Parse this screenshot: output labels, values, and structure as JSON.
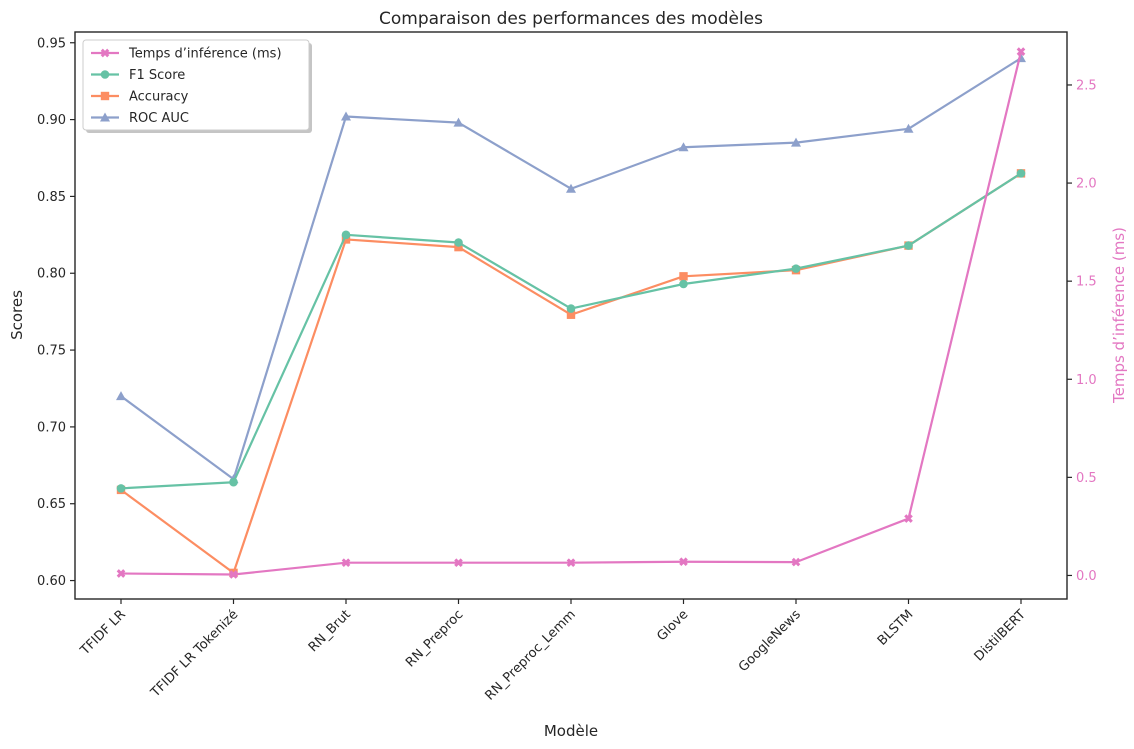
{
  "chart_data": {
    "type": "line",
    "title": "Comparaison des performances des modèles",
    "xlabel": "Modèle",
    "ylabel": "Scores",
    "y2label": "Temps d’inférence (ms)",
    "categories": [
      "TFIDF LR",
      "TFIDF LR Tokenizé",
      "RN_Brut",
      "RN_Preproc",
      "RN_Preproc_Lemm",
      "Glove",
      "GoogleNews",
      "BLSTM",
      "DistilBERT"
    ],
    "ylim": [
      0.588,
      0.957
    ],
    "y2lim": [
      -0.12,
      2.77
    ],
    "yticks": [
      "0.60",
      "0.65",
      "0.70",
      "0.75",
      "0.80",
      "0.85",
      "0.90",
      "0.95"
    ],
    "y2ticks": [
      "0.0",
      "0.5",
      "1.0",
      "1.5",
      "2.0",
      "2.5"
    ],
    "grid": false,
    "legend_position": "top-left",
    "series": [
      {
        "name": "Temps d’inférence (ms)",
        "axis": "right",
        "color": "#e377c2",
        "marker": "x",
        "values": [
          0.01,
          0.005,
          0.065,
          0.065,
          0.065,
          0.07,
          0.068,
          0.29,
          2.67
        ]
      },
      {
        "name": "F1 Score",
        "axis": "left",
        "color": "#66c2a5",
        "marker": "circle",
        "values": [
          0.66,
          0.664,
          0.825,
          0.82,
          0.777,
          0.793,
          0.803,
          0.818,
          0.865
        ]
      },
      {
        "name": "Accuracy",
        "axis": "left",
        "color": "#fc8d62",
        "marker": "square",
        "values": [
          0.659,
          0.605,
          0.822,
          0.817,
          0.773,
          0.798,
          0.802,
          0.818,
          0.865
        ]
      },
      {
        "name": "ROC AUC",
        "axis": "left",
        "color": "#8da0cb",
        "marker": "triangle",
        "values": [
          0.72,
          0.666,
          0.902,
          0.898,
          0.855,
          0.882,
          0.885,
          0.894,
          0.94
        ]
      }
    ]
  }
}
